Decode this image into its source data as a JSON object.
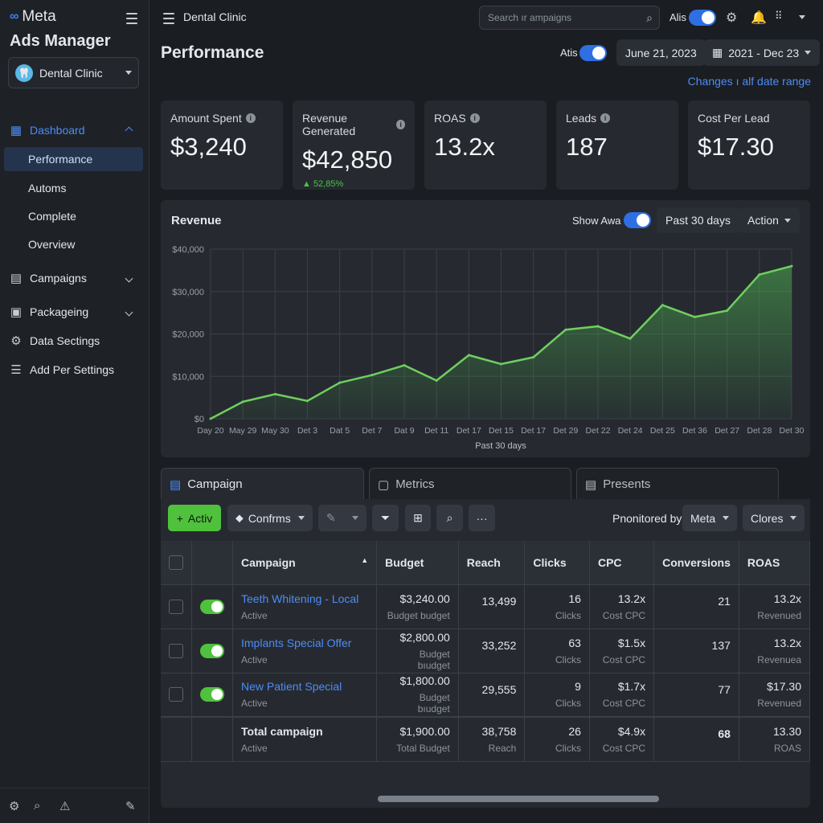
{
  "brand": {
    "logo": "∞",
    "name": "Meta",
    "app_title": "Ads Manager"
  },
  "account": {
    "name": "Dental Clinic"
  },
  "sidebar": {
    "items": [
      {
        "label": "Dashboard",
        "icon": "dashboard-icon"
      },
      {
        "label": "Performance"
      },
      {
        "label": "Automs"
      },
      {
        "label": "Complete"
      },
      {
        "label": "Overview"
      },
      {
        "label": "Campaigns",
        "icon": "chart-icon"
      },
      {
        "label": "Packageing",
        "icon": "package-icon"
      },
      {
        "label": "Data Sectings",
        "icon": "gear-icon"
      },
      {
        "label": "Add Per Settings",
        "icon": "list-icon"
      }
    ]
  },
  "topbar": {
    "title": "Dental Clinic",
    "search_placeholder": "Search ır ampaigns",
    "toggle_label": "Alis"
  },
  "header": {
    "title": "Performance",
    "toggle_label": "Atis",
    "date": "June 21, 2023",
    "range": "2021 - Dec 23",
    "link": "Changes ı alf date range"
  },
  "cards": [
    {
      "label": "Amount Spent",
      "value": "$3,240",
      "info": true
    },
    {
      "label": "Revenue Generated",
      "value": "$42,850",
      "delta": "▲ 52,85%",
      "info": true
    },
    {
      "label": "ROAS",
      "value": "13.2x",
      "info": true
    },
    {
      "label": "Leads",
      "value": "187",
      "info": true
    },
    {
      "label": "Cost Per Lead",
      "value": "$17.30"
    }
  ],
  "revenue": {
    "title": "Revenue",
    "toggle_label": "Show Awa",
    "period": "Past 30 days",
    "action": "Action"
  },
  "chart_data": {
    "type": "area",
    "title": "Revenue",
    "xlabel": "Past 30 days",
    "ylabel": "",
    "ylim": [
      0,
      40000
    ],
    "yticks": [
      "$0",
      "$10,000",
      "$20,000",
      "$30,000",
      "$40,000"
    ],
    "categories": [
      "Day 20",
      "May 29",
      "May 30",
      "Det 3",
      "Dat 5",
      "Det 7",
      "Dat 9",
      "Det 11",
      "Det 17",
      "Det 15",
      "Det 17",
      "Det 29",
      "Det 22",
      "Det 24",
      "Det 25",
      "Det 36",
      "Det 27",
      "Det 28",
      "Det 30"
    ],
    "series": [
      {
        "values": [
          0,
          4000,
          5800,
          4200,
          8500,
          10300,
          12600,
          9000,
          15000,
          12900,
          14500,
          21000,
          21800,
          18900,
          26800,
          24000,
          25500,
          34000,
          36000
        ]
      }
    ],
    "color": "#6fcf5f",
    "grid": true
  },
  "tabs": [
    {
      "label": "Campaign"
    },
    {
      "label": "Metrics"
    },
    {
      "label": "Presents"
    }
  ],
  "toolbar": {
    "add_label": "Activ",
    "confirm_label": "Confrms",
    "monitored_label": "Pnonitored by:",
    "meta_label": "Meta",
    "columns_label": "Clores"
  },
  "table": {
    "headers": [
      "Campaign",
      "Budget",
      "Reach",
      "Clicks",
      "CPC",
      "Conversions",
      "ROAS"
    ],
    "rows": [
      {
        "name": "Teeth Whitening - Local",
        "status": "Active",
        "budget": "$3,240.00",
        "budget_sub": "Budget budget",
        "reach": "13,499",
        "clicks": "16",
        "clicks_sub": "Clicks",
        "cpc": "13.2x",
        "cpc_sub": "Cost CPC",
        "conv": "21",
        "roas": "13.2x",
        "roas_sub": "Revenued"
      },
      {
        "name": "Implants Special Offer",
        "status": "Active",
        "budget": "$2,800.00",
        "budget_sub": "Budget bıudget",
        "reach": "33,252",
        "clicks": "63",
        "clicks_sub": "Clicks",
        "cpc": "$1.5x",
        "cpc_sub": "Cost CPC",
        "conv": "137",
        "roas": "13.2x",
        "roas_sub": "Revenuea"
      },
      {
        "name": "New Patient Special",
        "status": "Active",
        "budget": "$1,800.00",
        "budget_sub": "Budget bıudget",
        "reach": "29,555",
        "clicks": "9",
        "clicks_sub": "Clicks",
        "cpc": "$1.7x",
        "cpc_sub": "Cost CPC",
        "conv": "77",
        "roas": "$17.30",
        "roas_sub": "Revenued"
      }
    ],
    "total": {
      "name": "Total campaign",
      "status": "Active",
      "budget": "$1,900.00",
      "budget_sub": "Total Budget",
      "reach": "38,758",
      "reach_sub": "Reach",
      "clicks": "26",
      "clicks_sub": "Clicks",
      "cpc": "$4.9x",
      "cpc_sub": "Cost CPC",
      "conv": "68",
      "roas": "13.30",
      "roas_sub": "ROAS"
    }
  }
}
